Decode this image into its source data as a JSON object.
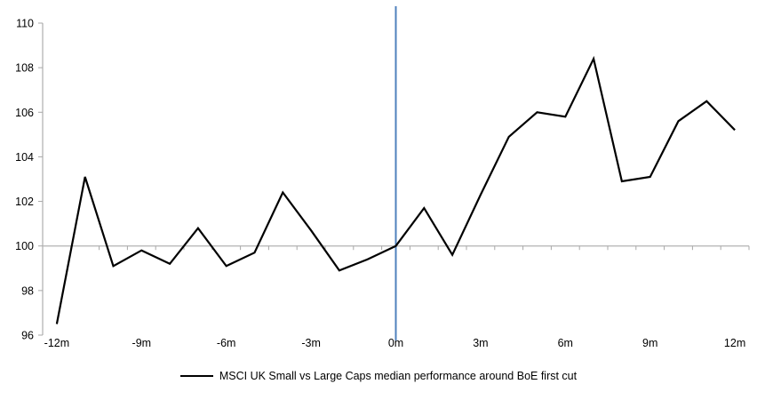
{
  "chart_data": {
    "type": "line",
    "title": "",
    "x": [
      -12,
      -11,
      -10,
      -9,
      -8,
      -7,
      -6,
      -5,
      -4,
      -3,
      -2,
      -1,
      0,
      1,
      2,
      3,
      4,
      5,
      6,
      7,
      8,
      9,
      10,
      11,
      12
    ],
    "x_tick_labels": [
      "-12m",
      "-9m",
      "-6m",
      "-3m",
      "0m",
      "3m",
      "6m",
      "9m",
      "12m"
    ],
    "x_label_months": [
      -12,
      -9,
      -6,
      -3,
      0,
      3,
      6,
      9,
      12
    ],
    "y_ticks": [
      96,
      98,
      100,
      102,
      104,
      106,
      108,
      110
    ],
    "ylim": [
      96,
      110
    ],
    "baseline_value": 100,
    "event_line_x": 0,
    "grid": "single horizontal baseline at 100, category boundary ticks below it",
    "legend_position": "bottom-center",
    "series": [
      {
        "name": "MSCI UK Small vs Large Caps median performance around BoE first cut",
        "color": "#000000",
        "values": [
          96.5,
          103.1,
          99.1,
          99.8,
          99.2,
          100.8,
          99.1,
          99.7,
          102.4,
          100.7,
          98.9,
          99.4,
          100.0,
          101.7,
          99.6,
          102.3,
          104.9,
          106.0,
          105.8,
          108.4,
          102.9,
          103.1,
          105.6,
          106.5,
          105.2
        ]
      }
    ],
    "colors": {
      "series_line": "#000000",
      "event_line": "#4F81BD",
      "axis": "#b3b3b3",
      "tick": "#a8a8a8",
      "text": "#000000"
    }
  },
  "legend": {
    "label": "MSCI UK Small vs Large Caps median performance around BoE first cut"
  }
}
